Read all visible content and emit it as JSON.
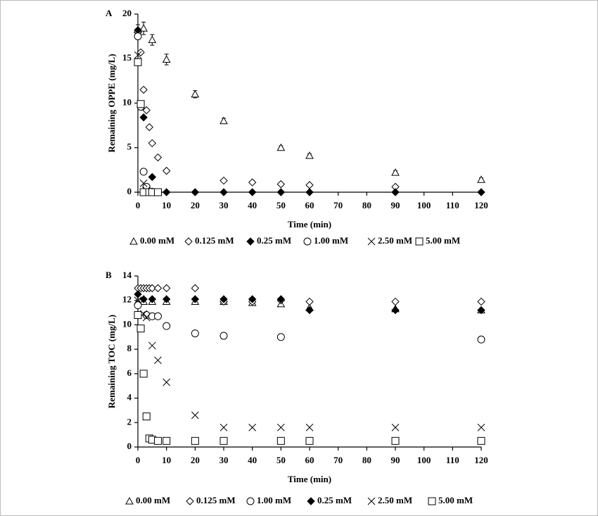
{
  "chart_data": [
    {
      "type": "scatter",
      "panel_label": "A",
      "x_label": "Time (min)",
      "y_label": "Remaining OPPE  (mg/L)",
      "xlim": [
        0,
        120
      ],
      "xticks": [
        0,
        10,
        20,
        30,
        40,
        50,
        60,
        70,
        80,
        90,
        100,
        110,
        120
      ],
      "ylim": [
        0,
        20
      ],
      "yticks": [
        0,
        5,
        10,
        15,
        20
      ],
      "series": [
        {
          "name": "0.00 mM",
          "marker": "triangle",
          "filled": false,
          "color": "#000000",
          "x": [
            0,
            2,
            5,
            10,
            20,
            30,
            50,
            60,
            90,
            120
          ],
          "values": [
            18.2,
            18.4,
            17.1,
            14.9,
            11.0,
            8.0,
            5.0,
            4.1,
            2.2,
            1.4
          ],
          "errors": [
            0.6,
            0.7,
            0.6,
            0.6,
            0.4,
            0.3,
            0.2,
            0.2,
            0.2,
            0.2
          ]
        },
        {
          "name": "0.125 mM",
          "marker": "diamond",
          "filled": false,
          "color": "#000000",
          "x": [
            0,
            1,
            2,
            3,
            4,
            5,
            7,
            10,
            30,
            40,
            50,
            60,
            90
          ],
          "values": [
            18.0,
            15.7,
            11.5,
            9.2,
            7.3,
            5.5,
            3.9,
            2.4,
            1.3,
            1.1,
            0.9,
            0.8,
            0.6
          ]
        },
        {
          "name": "0.25 mM",
          "marker": "diamond",
          "filled": true,
          "color": "#000000",
          "x": [
            0,
            2,
            5,
            10,
            20,
            30,
            40,
            50,
            60,
            90,
            120
          ],
          "values": [
            18.2,
            8.4,
            1.7,
            0,
            0,
            0,
            0,
            0,
            0,
            0,
            0
          ]
        },
        {
          "name": "1.00 mM",
          "marker": "circle",
          "filled": false,
          "color": "#000000",
          "x": [
            0,
            1,
            2,
            3,
            5,
            7
          ],
          "values": [
            17.5,
            9.6,
            2.3,
            0.6,
            0.05,
            0
          ]
        },
        {
          "name": "2.50 mM",
          "marker": "cross",
          "filled": false,
          "color": "#000000",
          "x": [
            0,
            1,
            2,
            3,
            5
          ],
          "values": [
            15.4,
            9.9,
            1.0,
            0.2,
            0
          ]
        },
        {
          "name": "5.00 mM",
          "marker": "square",
          "filled": false,
          "color": "#000000",
          "x": [
            0,
            1,
            2,
            4,
            5,
            7
          ],
          "values": [
            14.6,
            9.9,
            0,
            0,
            0,
            0
          ]
        }
      ]
    },
    {
      "type": "scatter",
      "panel_label": "B",
      "x_label": "Time (min)",
      "y_label": "Remaining TOC  (mg/L)",
      "xlim": [
        0,
        120
      ],
      "xticks": [
        0,
        10,
        20,
        30,
        40,
        50,
        60,
        70,
        80,
        90,
        100,
        110,
        120
      ],
      "ylim": [
        0,
        14
      ],
      "yticks": [
        0,
        2,
        4,
        6,
        8,
        10,
        12,
        14
      ],
      "series": [
        {
          "name": "0.00 mM",
          "marker": "triangle",
          "filled": false,
          "color": "#000000",
          "x": [
            0,
            2,
            5,
            10,
            20,
            30,
            40,
            50,
            60,
            90,
            120
          ],
          "values": [
            11.9,
            11.9,
            11.9,
            11.9,
            11.9,
            11.9,
            11.8,
            11.7,
            11.4,
            11.3,
            11.2
          ]
        },
        {
          "name": "0.125 mM",
          "marker": "diamond",
          "filled": false,
          "color": "#000000",
          "x": [
            0,
            1,
            2,
            3,
            4,
            5,
            7,
            10,
            20,
            30,
            40,
            50,
            60,
            90,
            120
          ],
          "values": [
            13.0,
            13.0,
            13.0,
            13.0,
            13.0,
            13.0,
            13.0,
            13.0,
            13.0,
            11.9,
            11.9,
            12.0,
            11.9,
            11.9,
            11.9
          ]
        },
        {
          "name": "1.00 mM",
          "marker": "circle",
          "filled": false,
          "color": "#000000",
          "x": [
            0,
            3,
            5,
            7,
            10,
            20,
            30,
            50,
            120
          ],
          "values": [
            11.6,
            10.8,
            10.7,
            10.7,
            9.9,
            9.3,
            9.1,
            9.0,
            8.8
          ]
        },
        {
          "name": "0.25 mM",
          "marker": "diamond",
          "filled": true,
          "color": "#000000",
          "x": [
            0,
            2,
            5,
            10,
            20,
            30,
            40,
            50,
            60,
            90,
            120
          ],
          "values": [
            12.5,
            12.1,
            12.1,
            12.1,
            12.1,
            12.1,
            12.1,
            12.1,
            11.2,
            11.2,
            11.2
          ]
        },
        {
          "name": "2.50 mM",
          "marker": "cross",
          "filled": false,
          "color": "#000000",
          "x": [
            0,
            2,
            3,
            5,
            7,
            10,
            20,
            30,
            40,
            50,
            60,
            90,
            120
          ],
          "values": [
            12.0,
            10.9,
            10.6,
            8.3,
            7.1,
            5.3,
            2.6,
            1.6,
            1.6,
            1.6,
            1.6,
            1.6,
            1.6
          ]
        },
        {
          "name": "5.00 mM",
          "marker": "square",
          "filled": false,
          "color": "#000000",
          "x": [
            0,
            1,
            2,
            3,
            4,
            5,
            7,
            10,
            20,
            30,
            50,
            60,
            90,
            120
          ],
          "values": [
            10.8,
            9.7,
            6.0,
            2.5,
            0.7,
            0.6,
            0.5,
            0.5,
            0.5,
            0.5,
            0.5,
            0.5,
            0.5,
            0.5
          ]
        }
      ]
    }
  ]
}
